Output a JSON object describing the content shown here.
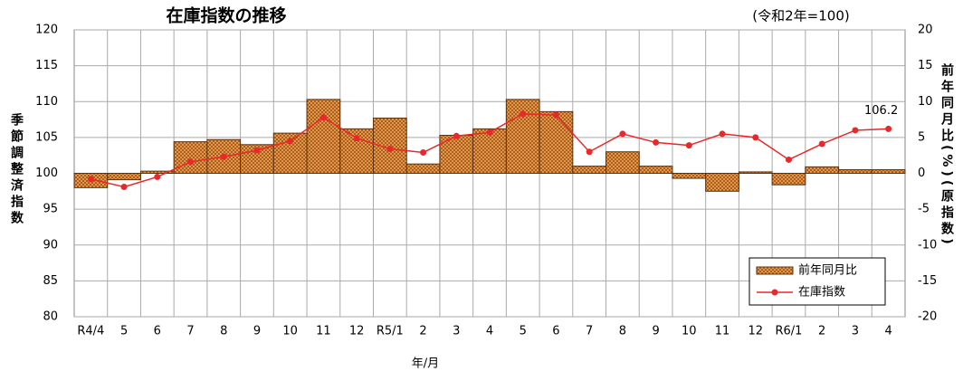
{
  "chart_data": {
    "type": "bar_line",
    "title": "在庫指数の推移",
    "subtitle": "(令和2年=100)",
    "x_label": "年/月",
    "y_label": "季節調整済指数",
    "y2_label": "前年同月比(%)(原指数)",
    "categories": [
      "R4/4",
      "5",
      "6",
      "7",
      "8",
      "9",
      "10",
      "11",
      "12",
      "R5/1",
      "2",
      "3",
      "4",
      "5",
      "6",
      "7",
      "8",
      "9",
      "10",
      "11",
      "12",
      "R6/1",
      "2",
      "3",
      "4"
    ],
    "series": [
      {
        "name": "前年同月比",
        "type": "bar",
        "axis": "y2",
        "color": "#f5a050",
        "values": [
          -2.0,
          -0.9,
          0.3,
          4.4,
          4.7,
          4.0,
          5.6,
          10.3,
          6.2,
          7.7,
          1.3,
          5.3,
          6.2,
          10.3,
          8.6,
          1.0,
          3.0,
          1.0,
          -0.7,
          -2.5,
          0.2,
          -1.6,
          0.9,
          0.5,
          0.5
        ]
      },
      {
        "name": "在庫指数",
        "type": "line",
        "color": "#e8282a",
        "values": [
          99.2,
          98.1,
          99.5,
          101.6,
          102.3,
          103.2,
          104.5,
          107.8,
          104.9,
          103.4,
          102.9,
          105.2,
          105.7,
          108.3,
          108.1,
          103.0,
          105.5,
          104.3,
          103.9,
          105.5,
          105.0,
          101.9,
          104.1,
          106.0,
          106.2
        ]
      }
    ],
    "ylim": [
      80,
      120
    ],
    "yticks": [
      80,
      85,
      90,
      95,
      100,
      105,
      110,
      115,
      120
    ],
    "y2lim": [
      -20,
      20
    ],
    "y2ticks": [
      -20,
      -15,
      -10,
      -5,
      0,
      5,
      10,
      15,
      20
    ],
    "grid": true,
    "legend": "lower right"
  }
}
